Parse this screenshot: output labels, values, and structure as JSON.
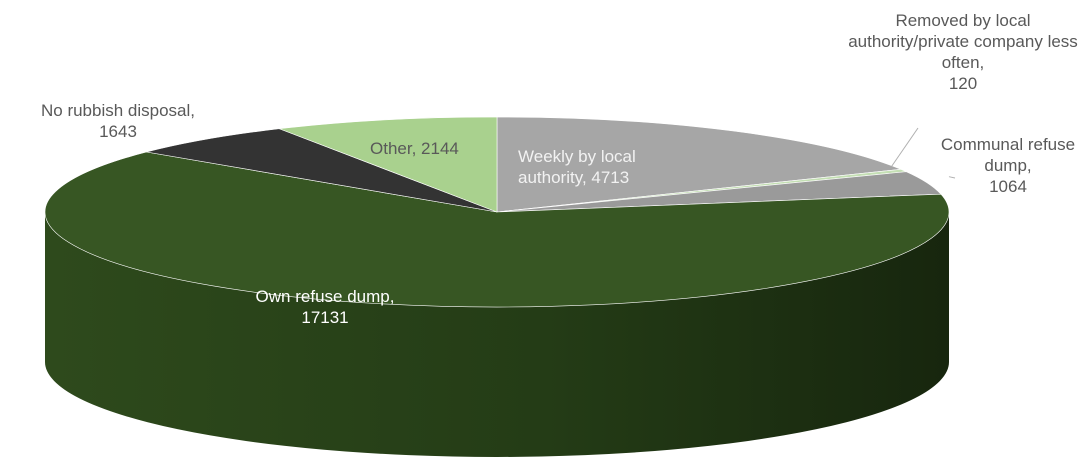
{
  "chart_data": {
    "type": "pie",
    "title": "",
    "slices": [
      {
        "name": "Weekly by local authority",
        "value": 4713,
        "color": "#a6a6a6"
      },
      {
        "name": "Removed by local authority/private company less often",
        "value": 120,
        "color": "#c4dfb4"
      },
      {
        "name": "Communal refuse dump",
        "value": 1064,
        "color": "#9a9a9a"
      },
      {
        "name": "Own refuse dump",
        "value": 17131,
        "color": "#375623"
      },
      {
        "name": "No rubbish disposal",
        "value": 1643,
        "color": "#333333"
      },
      {
        "name": "Other",
        "value": 2144,
        "color": "#a9d18e"
      }
    ],
    "data_labels": [
      {
        "name": "Weekly by local",
        "value": "authority, 4713"
      },
      {
        "name": "Removed by local authority/private company less often,",
        "value": "120"
      },
      {
        "name": "Communal refuse dump,",
        "value": "1064"
      },
      {
        "name": "Own refuse dump,",
        "value": "17131"
      },
      {
        "name": "No rubbish disposal,",
        "value": "1643"
      },
      {
        "name": "Other,",
        "value": "2144"
      }
    ],
    "legend": "none",
    "style": "3d-pie"
  }
}
